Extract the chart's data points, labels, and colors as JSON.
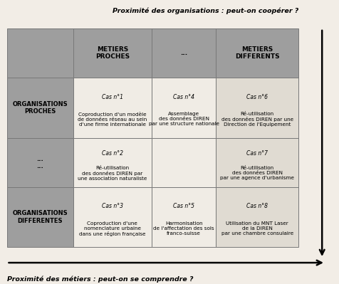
{
  "title_top": "Proximité des organisations : peut-on coopérer ?",
  "title_bottom": "Proximité des métiers : peut-on se comprendre ?",
  "bg_color": "#f2ede6",
  "dark_cell_color": "#9e9e9e",
  "light_cell_color": "#e0dbd2",
  "white_cell_color": "#f0ece5",
  "border_color": "#787878",
  "header_row": [
    "",
    "METIERS\nPROCHES",
    "...",
    "METIERS\nDIFFERENTS"
  ],
  "row_headers": [
    "ORGANISATIONS\nPROCHES",
    "...\n...",
    "ORGANISATIONS\nDIFFERENTES"
  ],
  "cells": [
    [
      "Cas n°1\nCoproduction d'un modèle\nde données réseau au sein\nd'une firme internationale",
      "Cas n°4\nAssemblage\ndes données DIREN\npar une structure nationale",
      "Cas n°6\nRé-utilisation\ndes données DIREN par une\nDirection de l'Equipement"
    ],
    [
      "Cas n°2\nRé-utilisation\ndes données DIREN par\nune association naturaliste",
      "",
      "Cas n°7\nRé-utilisation\ndes données DIREN\npar une agence d'urbanisme"
    ],
    [
      "Cas n°3\nCoproduction d'une\nnomenclature urbaine\ndans une région française",
      "Cas n°5\nHarmonisation\nde l'affectation des sols\nfranco-suisse",
      "Cas n°8\nUtilisation du MNT Laser\nde la DIREN\npar une chambre consulaire"
    ]
  ]
}
